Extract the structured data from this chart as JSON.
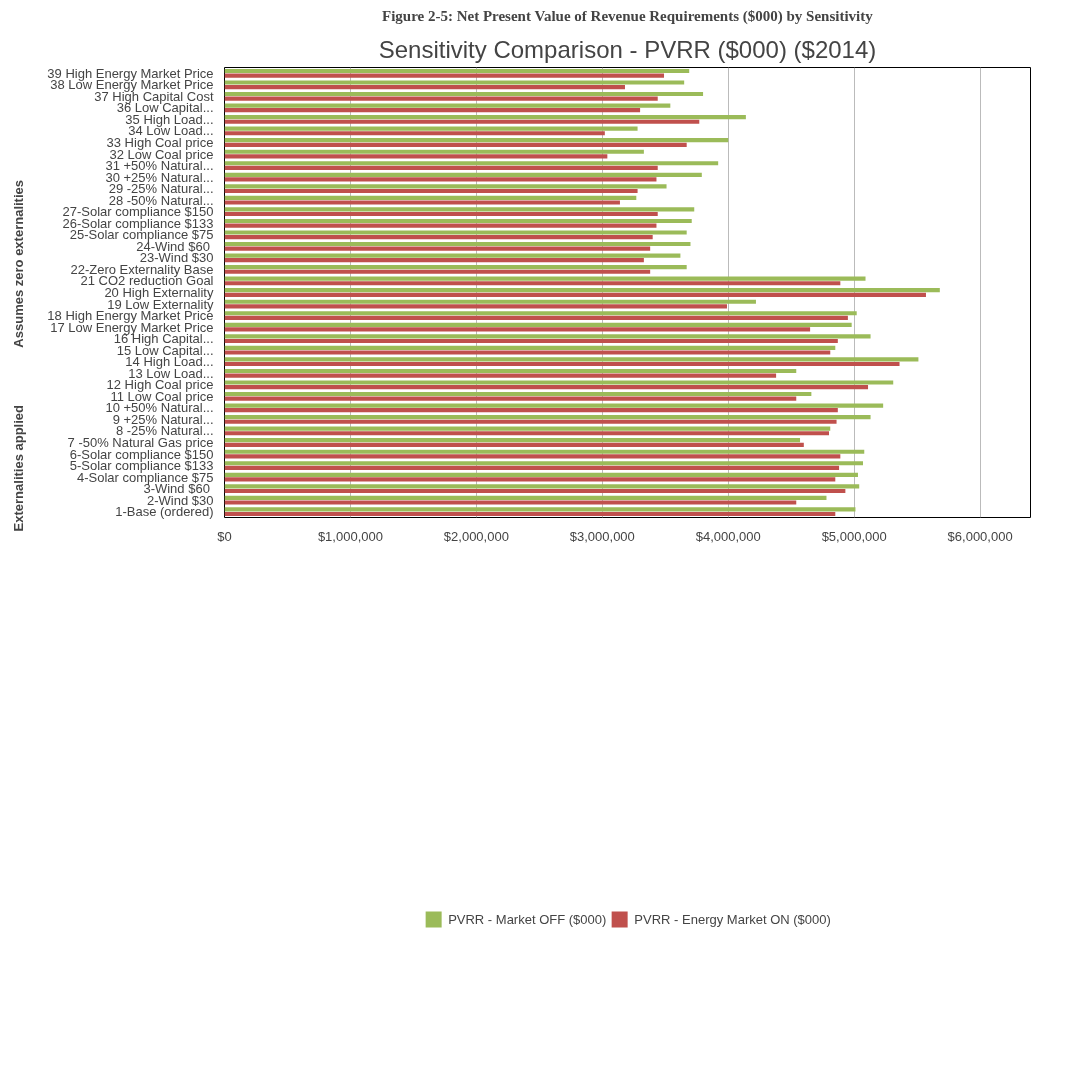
{
  "chart_data": {
    "type": "bar",
    "orientation": "horizontal",
    "title": "Sensitivity Comparison - PVRR ($000) ($2014)",
    "annotations": [
      "Figure 2-5: Net Present Value of Revenue Requirements ($000) by Sensitivity",
      "Assumes zero externalities",
      "Externalities applied"
    ],
    "categories": [
      "39 High Energy Market Price",
      "38 Low Energy Market Price",
      "37 High Capital Cost",
      "36 Low Capital...",
      "35 High Load...",
      "34 Low Load...",
      "33 High Coal price",
      "32 Low Coal price",
      "31 +50% Natural...",
      "30 +25% Natural...",
      "29 -25% Natural...",
      "28 -50% Natural...",
      "27-Solar compliance $150",
      "26-Solar compliance $133",
      "25-Solar compliance $75",
      "24-Wind  $60",
      "23-Wind $30",
      "22-Zero Externality Base",
      "21 CO2 reduction Goal",
      "20 High Externality",
      "19 Low Externality",
      "18 High Energy Market Price",
      "17 Low Energy Market Price",
      "16 High Capital...",
      "15 Low Capital...",
      "14 High Load...",
      "13 Low Load...",
      "12 High Coal price",
      "11 Low Coal price",
      "10 +50% Natural...",
      "9 +25% Natural...",
      "8 -25% Natural...",
      "7 -50% Natural Gas price",
      "6-Solar compliance $150",
      "5-Solar compliance $133",
      "4-Solar compliance $75",
      "3-Wind  $60",
      "2-Wind $30",
      "1-Base (ordered)"
    ],
    "series": [
      {
        "name": "PVRR - Market OFF ($000)",
        "color": "#9bbb59",
        "values": [
          3690000,
          3650000,
          3800000,
          3540000,
          4140000,
          3280000,
          4000000,
          3330000,
          3920000,
          3790000,
          3510000,
          3270000,
          3730000,
          3710000,
          3670000,
          3700000,
          3620000,
          3670000,
          5090000,
          5680000,
          4220000,
          5020000,
          4980000,
          5130000,
          4850000,
          5510000,
          4540000,
          5310000,
          4660000,
          5230000,
          5130000,
          4810000,
          4570000,
          5080000,
          5070000,
          5030000,
          5040000,
          4780000,
          5010000
        ]
      },
      {
        "name": "PVRR - Energy Market ON ($000)",
        "color": "#c0504d",
        "values": [
          3490000,
          3180000,
          3440000,
          3300000,
          3770000,
          3020000,
          3670000,
          3040000,
          3440000,
          3430000,
          3280000,
          3140000,
          3440000,
          3430000,
          3400000,
          3380000,
          3330000,
          3380000,
          4890000,
          5570000,
          3990000,
          4950000,
          4650000,
          4870000,
          4810000,
          5360000,
          4380000,
          5110000,
          4540000,
          4870000,
          4860000,
          4800000,
          4600000,
          4890000,
          4880000,
          4850000,
          4930000,
          4540000,
          4850000
        ]
      }
    ],
    "xlim": [
      0,
      6400000
    ],
    "xticks": [
      {
        "value": 0,
        "label": "$0"
      },
      {
        "value": 1000000,
        "label": "$1,000,000"
      },
      {
        "value": 2000000,
        "label": "$2,000,000"
      },
      {
        "value": 3000000,
        "label": "$3,000,000"
      },
      {
        "value": 4000000,
        "label": "$4,000,000"
      },
      {
        "value": 5000000,
        "label": "$5,000,000"
      },
      {
        "value": 6000000,
        "label": "$6,000,000"
      }
    ],
    "grid": "x",
    "legend": "bottom"
  }
}
